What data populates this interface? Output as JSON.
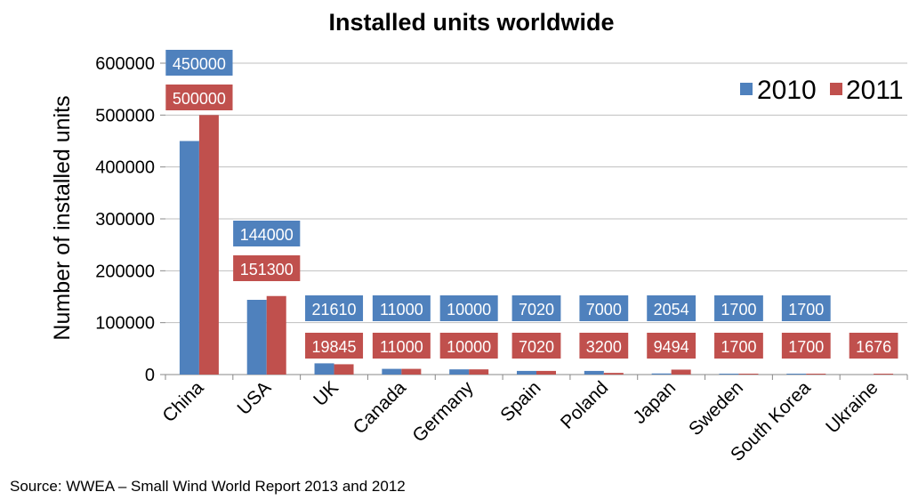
{
  "chart_data": {
    "type": "bar",
    "title": "Installed units worldwide",
    "xlabel": "",
    "ylabel": "Number of installed units",
    "ylim": [
      0,
      600000
    ],
    "yticks": [
      "0",
      "100000",
      "200000",
      "300000",
      "400000",
      "500000",
      "600000"
    ],
    "categories": [
      "China",
      "USA",
      "UK",
      "Canada",
      "Germany",
      "Spain",
      "Poland",
      "Japan",
      "Sweden",
      "South Korea",
      "Ukraine"
    ],
    "series": [
      {
        "name": "2010",
        "color": "#4f81bd",
        "values": [
          450000,
          144000,
          21610,
          11000,
          10000,
          7020,
          7000,
          2054,
          1700,
          1700,
          null
        ],
        "labels": [
          "450000",
          "144000",
          "21610",
          "11000",
          "10000",
          "7020",
          "7000",
          "2054",
          "1700",
          "1700",
          ""
        ]
      },
      {
        "name": "2011",
        "color": "#c0504d",
        "values": [
          500000,
          151300,
          19845,
          11000,
          10000,
          7020,
          3200,
          9494,
          1700,
          1700,
          1676
        ],
        "labels": [
          "500000",
          "151300",
          "19845",
          "11000",
          "10000",
          "7020",
          "3200",
          "9494",
          "1700",
          "1700",
          "1676"
        ]
      }
    ],
    "grid": true,
    "legend": "top-right"
  },
  "source": "Source: WWEA – Small Wind World Report 2013 and 2012"
}
